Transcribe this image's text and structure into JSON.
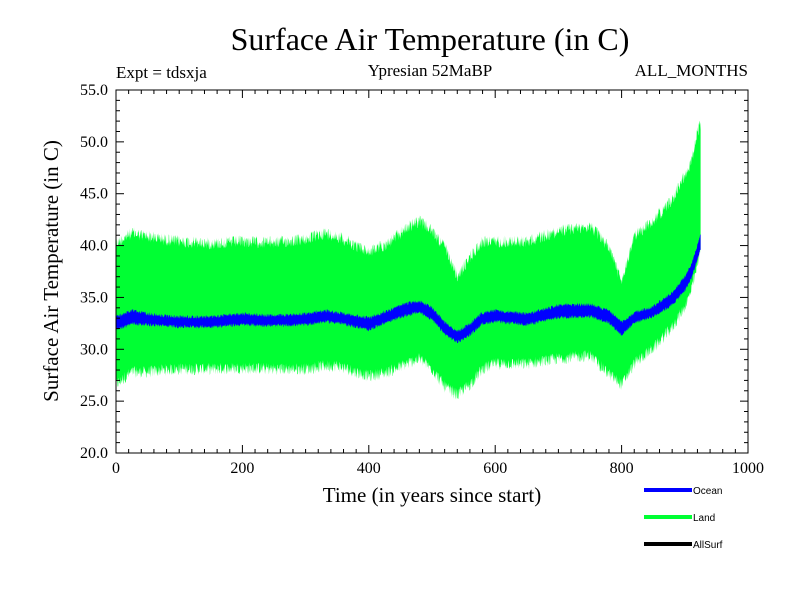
{
  "chart_data": {
    "type": "area",
    "title": "Surface Air Temperature (in C)",
    "subtitle_left": "Expt = tdsxja",
    "subtitle_center": "Ypresian  52MaBP",
    "subtitle_right": "ALL_MONTHS",
    "xlabel": "Time (in years since start)",
    "ylabel": "Surface Air Temperature (in C)",
    "xlim": [
      0,
      1000
    ],
    "ylim": [
      20,
      55
    ],
    "x_ticks": [
      0,
      200,
      400,
      600,
      800,
      1000
    ],
    "y_ticks": [
      "20.0",
      "25.0",
      "30.0",
      "35.0",
      "40.0",
      "45.0",
      "50.0",
      "55.0"
    ],
    "x": [
      0,
      25,
      50,
      75,
      100,
      150,
      200,
      250,
      300,
      330,
      350,
      400,
      430,
      460,
      480,
      500,
      520,
      540,
      560,
      580,
      600,
      650,
      700,
      750,
      780,
      800,
      820,
      850,
      880,
      900,
      910,
      920,
      925
    ],
    "series": [
      {
        "name": "Land",
        "color": "#00ff33",
        "upper": [
          40.8,
          41.8,
          41.5,
          41.2,
          41.0,
          40.8,
          41.0,
          40.9,
          41.2,
          41.8,
          41.5,
          40.0,
          40.8,
          42.3,
          43.0,
          42.0,
          40.5,
          37.5,
          39.5,
          41.0,
          41.0,
          41.0,
          42.0,
          42.5,
          40.5,
          37.0,
          41.5,
          43.0,
          45.0,
          47.5,
          48.5,
          51.5,
          52.3
        ],
        "lower": [
          26.0,
          27.2,
          27.2,
          27.4,
          27.5,
          27.5,
          27.6,
          27.5,
          27.5,
          27.8,
          27.8,
          26.8,
          27.2,
          28.0,
          28.5,
          27.5,
          25.8,
          25.0,
          26.0,
          27.5,
          28.0,
          28.0,
          28.5,
          28.8,
          27.0,
          26.0,
          28.0,
          29.5,
          31.5,
          33.5,
          35.0,
          37.5,
          39.5
        ]
      },
      {
        "name": "Ocean",
        "color": "#0000ff",
        "upper": [
          33.3,
          33.9,
          33.6,
          33.4,
          33.3,
          33.3,
          33.6,
          33.4,
          33.6,
          33.9,
          33.7,
          33.2,
          33.9,
          34.6,
          34.8,
          34.2,
          32.8,
          31.9,
          32.6,
          33.7,
          33.9,
          33.6,
          34.4,
          34.5,
          33.9,
          32.8,
          33.7,
          34.3,
          35.6,
          37.2,
          38.3,
          40.2,
          41.3
        ],
        "lower": [
          31.7,
          32.3,
          32.2,
          32.1,
          32.0,
          32.0,
          32.2,
          32.1,
          32.2,
          32.5,
          32.4,
          31.7,
          32.5,
          33.1,
          33.4,
          32.7,
          31.3,
          30.5,
          31.2,
          32.3,
          32.5,
          32.2,
          32.9,
          33.0,
          32.4,
          31.2,
          32.4,
          33.0,
          34.1,
          35.5,
          36.6,
          38.5,
          39.5
        ]
      },
      {
        "name": "AllSurf",
        "color": "#000000",
        "upper": [],
        "lower": []
      }
    ],
    "legend": [
      "Ocean",
      "Land",
      "AllSurf"
    ],
    "legend_position": "bottom-right",
    "grid": false
  }
}
